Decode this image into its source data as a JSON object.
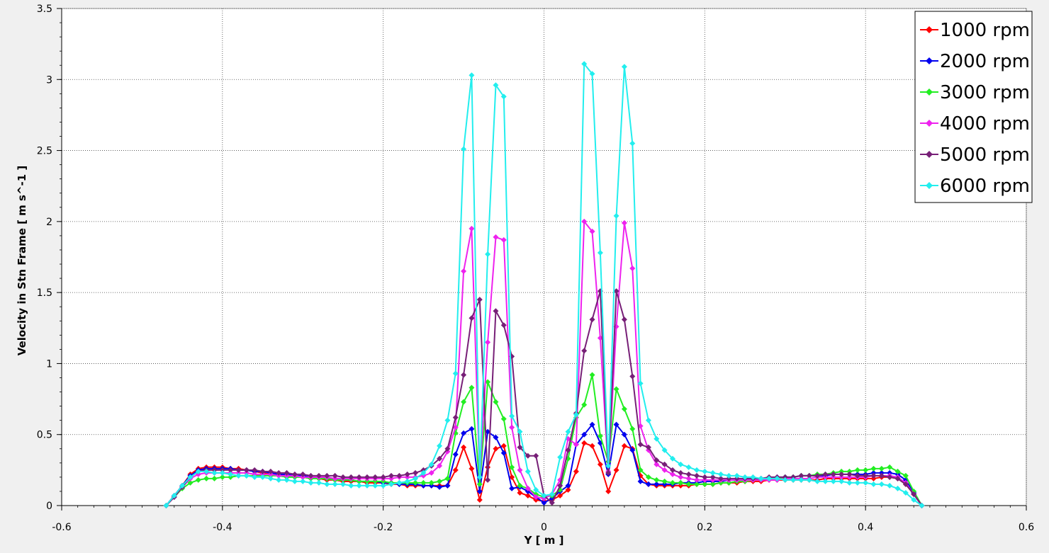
{
  "chart_data": {
    "type": "line",
    "xlabel": "Y [ m ]",
    "ylabel": "Velocity in Stn Frame [ m s^-1 ]",
    "xlim": [
      -0.6,
      0.6
    ],
    "ylim": [
      0,
      3.5
    ],
    "xticks": [
      -0.6,
      -0.4,
      -0.2,
      0,
      0.2,
      0.4,
      0.6
    ],
    "xtick_labels": [
      "-0.6",
      "-0.4",
      "-0.2",
      "0",
      "0.2",
      "0.4",
      "0.6"
    ],
    "yticks": [
      0,
      0.5,
      1,
      1.5,
      2,
      2.5,
      3,
      3.5
    ],
    "ytick_labels": [
      "0",
      "0.5",
      "1",
      "1.5",
      "2",
      "2.5",
      "3",
      "3.5"
    ],
    "grid": true,
    "legend_position": "top-right",
    "x": [
      -0.47,
      -0.46,
      -0.45,
      -0.44,
      -0.43,
      -0.42,
      -0.41,
      -0.4,
      -0.39,
      -0.38,
      -0.37,
      -0.36,
      -0.35,
      -0.34,
      -0.33,
      -0.32,
      -0.31,
      -0.3,
      -0.29,
      -0.28,
      -0.27,
      -0.26,
      -0.25,
      -0.24,
      -0.23,
      -0.22,
      -0.21,
      -0.2,
      -0.19,
      -0.18,
      -0.17,
      -0.16,
      -0.15,
      -0.14,
      -0.13,
      -0.12,
      -0.11,
      -0.1,
      -0.09,
      -0.08,
      -0.07,
      -0.06,
      -0.05,
      -0.04,
      -0.03,
      -0.02,
      -0.01,
      0.0,
      0.01,
      0.02,
      0.03,
      0.04,
      0.05,
      0.06,
      0.07,
      0.08,
      0.09,
      0.1,
      0.11,
      0.12,
      0.13,
      0.14,
      0.15,
      0.16,
      0.17,
      0.18,
      0.19,
      0.2,
      0.21,
      0.22,
      0.23,
      0.24,
      0.25,
      0.26,
      0.27,
      0.28,
      0.29,
      0.3,
      0.31,
      0.32,
      0.33,
      0.34,
      0.35,
      0.36,
      0.37,
      0.38,
      0.39,
      0.4,
      0.41,
      0.42,
      0.43,
      0.44,
      0.45,
      0.46,
      0.47
    ],
    "series": [
      {
        "name": "1000 rpm",
        "color": "#ff0000",
        "values": [
          0.0,
          0.07,
          0.14,
          0.22,
          0.26,
          0.27,
          0.27,
          0.27,
          0.26,
          0.26,
          0.25,
          0.24,
          0.23,
          0.22,
          0.22,
          0.21,
          0.21,
          0.2,
          0.2,
          0.19,
          0.18,
          0.18,
          0.17,
          0.17,
          0.17,
          0.16,
          0.16,
          0.16,
          0.15,
          0.15,
          0.14,
          0.14,
          0.14,
          0.14,
          0.14,
          0.14,
          0.25,
          0.41,
          0.26,
          0.04,
          0.27,
          0.4,
          0.42,
          0.2,
          0.09,
          0.07,
          0.04,
          0.03,
          0.04,
          0.07,
          0.11,
          0.24,
          0.44,
          0.42,
          0.29,
          0.1,
          0.25,
          0.42,
          0.4,
          0.21,
          0.15,
          0.14,
          0.14,
          0.14,
          0.14,
          0.14,
          0.15,
          0.15,
          0.15,
          0.16,
          0.16,
          0.16,
          0.17,
          0.17,
          0.17,
          0.18,
          0.18,
          0.18,
          0.18,
          0.18,
          0.18,
          0.18,
          0.19,
          0.19,
          0.19,
          0.19,
          0.19,
          0.19,
          0.19,
          0.2,
          0.2,
          0.19,
          0.15,
          0.08,
          0.0
        ]
      },
      {
        "name": "2000 rpm",
        "color": "#0000ee",
        "values": [
          0.0,
          0.07,
          0.14,
          0.21,
          0.25,
          0.26,
          0.26,
          0.26,
          0.26,
          0.25,
          0.25,
          0.24,
          0.24,
          0.23,
          0.22,
          0.22,
          0.21,
          0.21,
          0.2,
          0.2,
          0.19,
          0.19,
          0.18,
          0.18,
          0.17,
          0.17,
          0.17,
          0.16,
          0.16,
          0.15,
          0.15,
          0.15,
          0.14,
          0.14,
          0.13,
          0.14,
          0.36,
          0.51,
          0.54,
          0.1,
          0.52,
          0.48,
          0.37,
          0.12,
          0.13,
          0.1,
          0.06,
          0.02,
          0.05,
          0.1,
          0.14,
          0.43,
          0.5,
          0.57,
          0.44,
          0.22,
          0.57,
          0.5,
          0.39,
          0.17,
          0.15,
          0.15,
          0.15,
          0.15,
          0.16,
          0.16,
          0.16,
          0.17,
          0.17,
          0.17,
          0.18,
          0.18,
          0.18,
          0.19,
          0.19,
          0.19,
          0.2,
          0.2,
          0.2,
          0.21,
          0.21,
          0.21,
          0.21,
          0.22,
          0.22,
          0.22,
          0.22,
          0.22,
          0.23,
          0.23,
          0.23,
          0.22,
          0.18,
          0.09,
          0.0
        ]
      },
      {
        "name": "3000 rpm",
        "color": "#22ee22",
        "values": [
          0.0,
          0.06,
          0.12,
          0.16,
          0.18,
          0.19,
          0.19,
          0.2,
          0.2,
          0.21,
          0.21,
          0.21,
          0.21,
          0.21,
          0.21,
          0.2,
          0.2,
          0.2,
          0.19,
          0.19,
          0.19,
          0.18,
          0.18,
          0.18,
          0.17,
          0.17,
          0.17,
          0.17,
          0.16,
          0.16,
          0.16,
          0.16,
          0.16,
          0.16,
          0.17,
          0.19,
          0.51,
          0.73,
          0.83,
          0.15,
          0.87,
          0.73,
          0.61,
          0.27,
          0.14,
          0.12,
          0.08,
          0.06,
          0.07,
          0.11,
          0.33,
          0.62,
          0.71,
          0.92,
          0.49,
          0.31,
          0.82,
          0.68,
          0.54,
          0.25,
          0.2,
          0.18,
          0.17,
          0.16,
          0.16,
          0.15,
          0.15,
          0.15,
          0.15,
          0.16,
          0.16,
          0.17,
          0.17,
          0.18,
          0.18,
          0.19,
          0.19,
          0.2,
          0.2,
          0.21,
          0.21,
          0.22,
          0.22,
          0.23,
          0.24,
          0.24,
          0.25,
          0.25,
          0.26,
          0.26,
          0.27,
          0.24,
          0.21,
          0.1,
          0.0
        ]
      },
      {
        "name": "4000 rpm",
        "color": "#ee22ee",
        "values": [
          0.0,
          0.06,
          0.13,
          0.19,
          0.22,
          0.23,
          0.23,
          0.23,
          0.23,
          0.23,
          0.23,
          0.22,
          0.22,
          0.22,
          0.21,
          0.21,
          0.21,
          0.2,
          0.2,
          0.2,
          0.2,
          0.19,
          0.19,
          0.19,
          0.19,
          0.19,
          0.19,
          0.19,
          0.19,
          0.2,
          0.2,
          0.2,
          0.21,
          0.23,
          0.28,
          0.38,
          0.55,
          1.65,
          1.95,
          0.2,
          1.15,
          1.89,
          1.87,
          0.55,
          0.25,
          0.12,
          0.06,
          0.05,
          0.08,
          0.18,
          0.47,
          0.43,
          2.0,
          1.93,
          1.18,
          0.24,
          1.26,
          1.99,
          1.67,
          0.56,
          0.39,
          0.29,
          0.25,
          0.22,
          0.2,
          0.19,
          0.18,
          0.18,
          0.18,
          0.18,
          0.18,
          0.18,
          0.18,
          0.18,
          0.18,
          0.18,
          0.18,
          0.19,
          0.19,
          0.19,
          0.19,
          0.2,
          0.2,
          0.2,
          0.2,
          0.2,
          0.2,
          0.2,
          0.21,
          0.21,
          0.21,
          0.2,
          0.16,
          0.08,
          0.0
        ]
      },
      {
        "name": "5000 rpm",
        "color": "#771f77",
        "values": [
          0.0,
          0.06,
          0.13,
          0.2,
          0.24,
          0.25,
          0.25,
          0.25,
          0.25,
          0.25,
          0.25,
          0.25,
          0.24,
          0.24,
          0.23,
          0.23,
          0.22,
          0.22,
          0.21,
          0.21,
          0.21,
          0.21,
          0.2,
          0.2,
          0.2,
          0.2,
          0.2,
          0.2,
          0.21,
          0.21,
          0.22,
          0.23,
          0.25,
          0.28,
          0.33,
          0.4,
          0.62,
          0.92,
          1.32,
          1.45,
          0.18,
          1.37,
          1.27,
          1.05,
          0.41,
          0.35,
          0.35,
          0.07,
          0.02,
          0.14,
          0.39,
          0.65,
          1.09,
          1.31,
          1.51,
          0.23,
          1.51,
          1.31,
          0.91,
          0.43,
          0.41,
          0.32,
          0.29,
          0.25,
          0.23,
          0.22,
          0.21,
          0.2,
          0.2,
          0.19,
          0.19,
          0.19,
          0.19,
          0.19,
          0.19,
          0.2,
          0.2,
          0.2,
          0.2,
          0.21,
          0.21,
          0.21,
          0.22,
          0.22,
          0.22,
          0.22,
          0.21,
          0.21,
          0.21,
          0.21,
          0.2,
          0.19,
          0.15,
          0.08,
          0.0
        ]
      },
      {
        "name": "6000 rpm",
        "color": "#22eeee",
        "values": [
          0.0,
          0.07,
          0.14,
          0.2,
          0.24,
          0.24,
          0.23,
          0.23,
          0.22,
          0.21,
          0.21,
          0.2,
          0.2,
          0.19,
          0.18,
          0.18,
          0.17,
          0.17,
          0.16,
          0.16,
          0.15,
          0.15,
          0.15,
          0.14,
          0.14,
          0.14,
          0.14,
          0.14,
          0.15,
          0.16,
          0.17,
          0.19,
          0.23,
          0.29,
          0.42,
          0.6,
          0.93,
          2.51,
          3.03,
          0.2,
          1.77,
          2.96,
          2.88,
          0.63,
          0.52,
          0.24,
          0.11,
          0.07,
          0.08,
          0.34,
          0.52,
          0.64,
          3.11,
          3.04,
          1.78,
          0.28,
          2.04,
          3.09,
          2.55,
          0.86,
          0.6,
          0.47,
          0.39,
          0.33,
          0.29,
          0.27,
          0.25,
          0.24,
          0.23,
          0.22,
          0.21,
          0.21,
          0.2,
          0.2,
          0.19,
          0.19,
          0.19,
          0.18,
          0.18,
          0.18,
          0.18,
          0.17,
          0.17,
          0.17,
          0.17,
          0.16,
          0.16,
          0.16,
          0.15,
          0.15,
          0.14,
          0.12,
          0.09,
          0.04,
          0.0
        ]
      }
    ]
  }
}
